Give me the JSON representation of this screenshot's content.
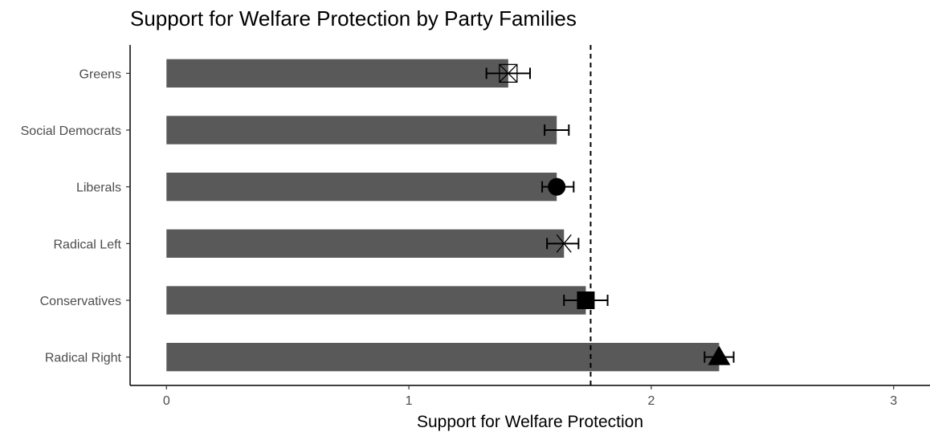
{
  "chart_data": {
    "type": "bar",
    "orientation": "horizontal",
    "title": "Support for Welfare Protection by Party Families",
    "xlabel": "Support for Welfare Protection",
    "ylabel": "",
    "xlim": [
      -0.15,
      3.15
    ],
    "xticks": [
      "0",
      "1",
      "2",
      "3"
    ],
    "reference_line": 1.75,
    "bar_color": "#595959",
    "categories": [
      "Greens",
      "Social Democrats",
      "Liberals",
      "Radical Left",
      "Conservatives",
      "Radical Right"
    ],
    "values": [
      1.41,
      1.61,
      1.61,
      1.64,
      1.73,
      2.28
    ],
    "error_low": [
      1.32,
      1.56,
      1.55,
      1.57,
      1.64,
      2.22
    ],
    "error_high": [
      1.5,
      1.66,
      1.68,
      1.7,
      1.82,
      2.34
    ],
    "markers": [
      "square-x",
      "none",
      "circle",
      "asterisk",
      "square",
      "triangle"
    ],
    "grid": false,
    "legend": "none"
  }
}
